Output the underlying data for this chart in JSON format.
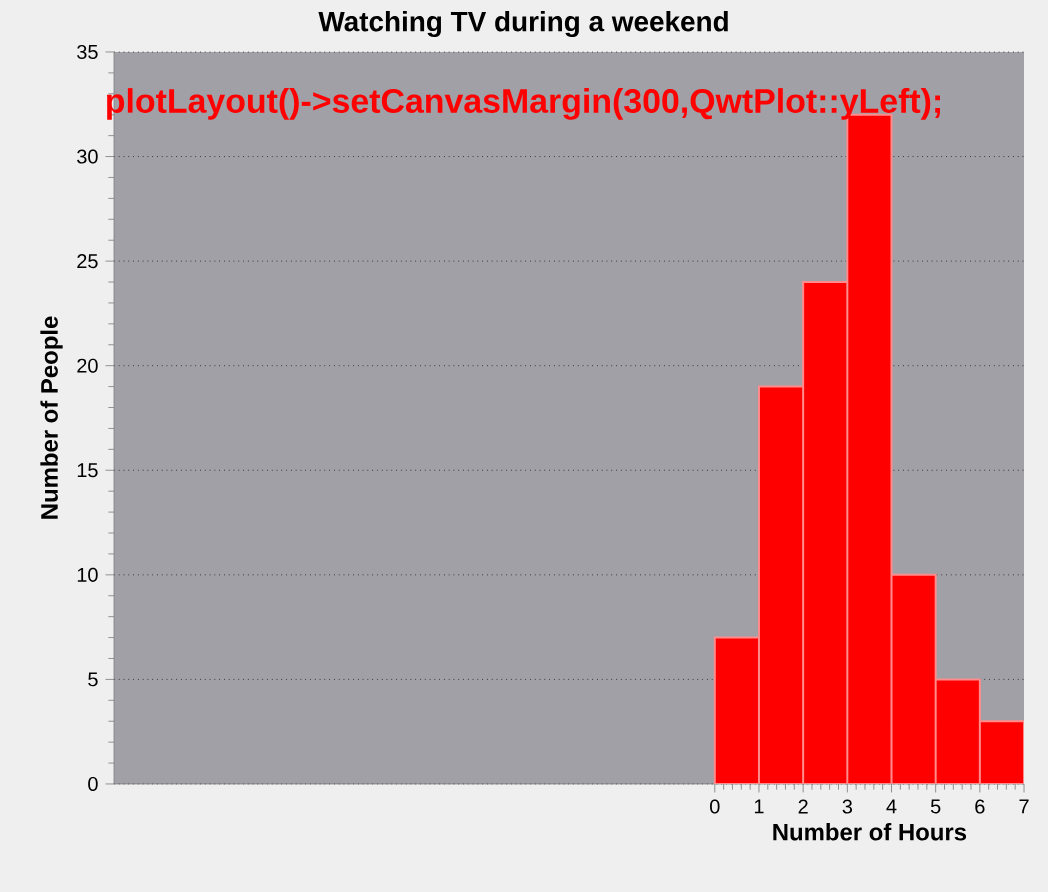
{
  "chart_data": {
    "type": "histogram",
    "title": "Watching TV during a weekend",
    "xlabel": "Number of Hours",
    "ylabel": "Number of People",
    "annotations": [
      "plotLayout()->setCanvasMargin(300,QwtPlot::yLeft);"
    ],
    "bins": [
      0,
      1,
      2,
      3,
      4,
      5,
      6,
      7
    ],
    "values": [
      7,
      19,
      24,
      32,
      10,
      5,
      3
    ],
    "color": "#ff0000",
    "xlim": [
      -13.6,
      7
    ],
    "ylim": [
      0,
      35
    ],
    "xticks": [
      0,
      1,
      2,
      3,
      4,
      5,
      6,
      7
    ],
    "yticks": [
      0,
      5,
      10,
      15,
      20,
      25,
      30,
      35
    ],
    "grid": "y"
  }
}
